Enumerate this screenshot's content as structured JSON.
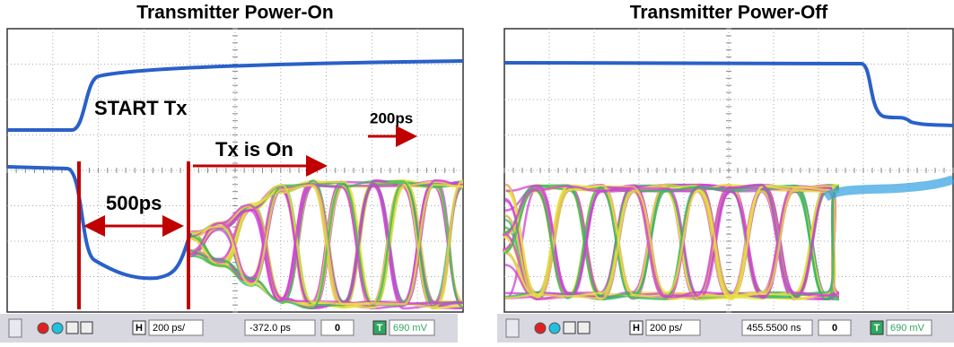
{
  "panels": [
    {
      "title": "Transmitter Power-On",
      "annotations": [
        "START Tx",
        "200ps",
        "Tx is On",
        "500ps"
      ],
      "toolbar": {
        "h_label": "H",
        "timebase": "200 ps/",
        "position": "-372.0 ps",
        "step": "0",
        "t_label": "T",
        "trigger_level": "690 mV"
      }
    },
    {
      "title": "Transmitter Power-Off",
      "toolbar": {
        "h_label": "H",
        "timebase": "200 ps/",
        "position": "455.5500 ns",
        "step": "0",
        "t_label": "T",
        "trigger_level": "690 mV"
      }
    }
  ]
}
